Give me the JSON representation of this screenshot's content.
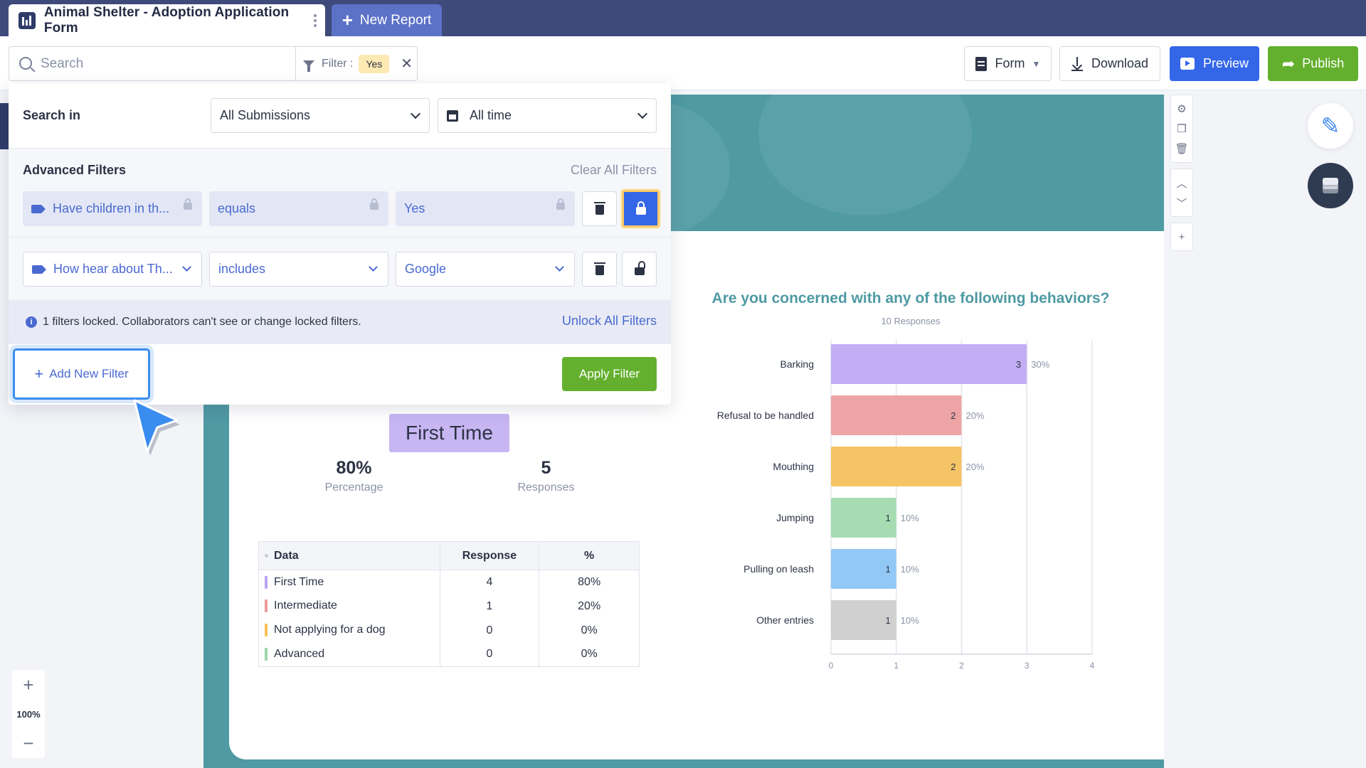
{
  "tabs": {
    "active_title": "Animal Shelter - Adoption Application Form",
    "new_report_label": "New Report"
  },
  "toolbar": {
    "search_placeholder": "Search",
    "filter_label": "Filter :",
    "filter_value": "Yes",
    "form_label": "Form",
    "download_label": "Download",
    "preview_label": "Preview",
    "publish_label": "Publish"
  },
  "filter_panel": {
    "search_in_label": "Search in",
    "submissions_select": "All Submissions",
    "time_select": "All time",
    "advanced_title": "Advanced Filters",
    "clear_all": "Clear All Filters",
    "filters": [
      {
        "field": "Have children in th...",
        "operator": "equals",
        "value": "Yes",
        "locked": true
      },
      {
        "field": "How hear about Th...",
        "operator": "includes",
        "value": "Google",
        "locked": false
      }
    ],
    "info_text": "1 filters locked. Collaborators can't see or change locked filters.",
    "unlock_all": "Unlock All Filters",
    "add_filter": "Add New Filter",
    "apply_filter": "Apply Filter"
  },
  "zoom": {
    "value": "100%"
  },
  "report": {
    "badge": "First Time",
    "percentage_value": "80%",
    "percentage_label": "Percentage",
    "responses_value": "5",
    "responses_label": "Responses",
    "table": {
      "headers": [
        "Data",
        "Response",
        "%"
      ],
      "rows": [
        {
          "label": "First Time",
          "response": "4",
          "pct": "80%",
          "color": "#b9a5f0"
        },
        {
          "label": "Intermediate",
          "response": "1",
          "pct": "20%",
          "color": "#ee9a9a"
        },
        {
          "label": "Not applying for a dog",
          "response": "0",
          "pct": "0%",
          "color": "#f5c15a"
        },
        {
          "label": "Advanced",
          "response": "0",
          "pct": "0%",
          "color": "#9dd6ab"
        }
      ]
    }
  },
  "chart_data": {
    "type": "bar",
    "orientation": "horizontal",
    "title": "Are you concerned with any of the following behaviors?",
    "subtitle": "10 Responses",
    "categories": [
      "Barking",
      "Refusal to be handled",
      "Mouthing",
      "Jumping",
      "Pulling on leash",
      "Other entries"
    ],
    "values": [
      3,
      2,
      2,
      1,
      1,
      1
    ],
    "percent_labels": [
      "30%",
      "20%",
      "20%",
      "10%",
      "10%",
      "10%"
    ],
    "colors": [
      "#c3aef5",
      "#eea4a4",
      "#f5c465",
      "#a7dcb3",
      "#92c8f5",
      "#d0d0d0"
    ],
    "xlim": [
      0,
      4
    ],
    "xticks": [
      "0",
      "1",
      "2",
      "3",
      "4"
    ],
    "grid": true
  }
}
